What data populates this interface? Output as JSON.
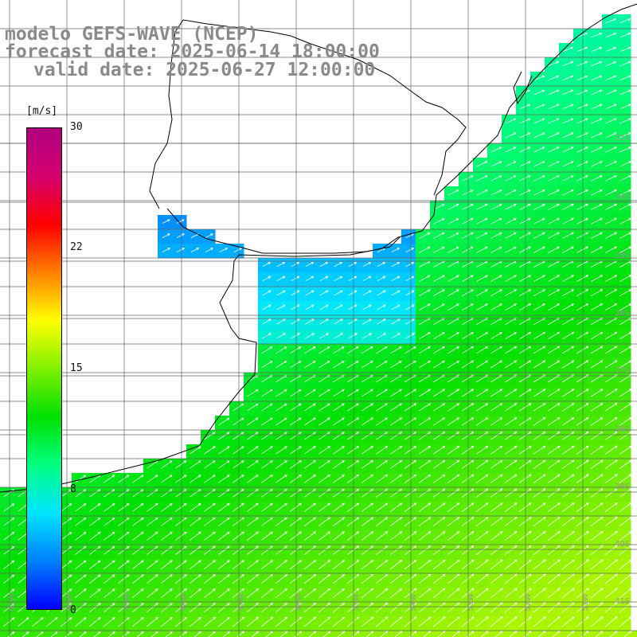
{
  "title": {
    "line1": "modelo GEFS-WAVE (NCEP)",
    "line2": "forecast date: 2025-06-14 18:00:00",
    "line3": "valid date: 2025-06-27 12:00:00"
  },
  "colorbar": {
    "unit": "[m/s]",
    "ticks": [
      "30",
      "22",
      "15",
      "8",
      "0"
    ],
    "tick_values": [
      30,
      22,
      15,
      8,
      0
    ],
    "range": [
      0,
      30
    ],
    "colors": [
      "#0000ff",
      "#0080ff",
      "#00e5ff",
      "#00ff80",
      "#00e000",
      "#80f000",
      "#ffff00",
      "#ff8000",
      "#ff0000",
      "#d4006e",
      "#b00080"
    ]
  },
  "map": {
    "lat_labels": [
      "33S",
      "34S",
      "35S",
      "36S",
      "37S",
      "38S",
      "39S",
      "40S",
      "41S"
    ],
    "lon_labels": [
      "61W",
      "60W",
      "59W",
      "58W",
      "57W",
      "56W",
      "55W",
      "54W",
      "53W",
      "52W",
      "51W"
    ],
    "field": "wind speed at 10 m",
    "colors": {
      "land": "#ffffff",
      "grid": "#666666",
      "coast": "#000000",
      "arrow": "#ffffff",
      "label": "#9a9a9a"
    }
  }
}
